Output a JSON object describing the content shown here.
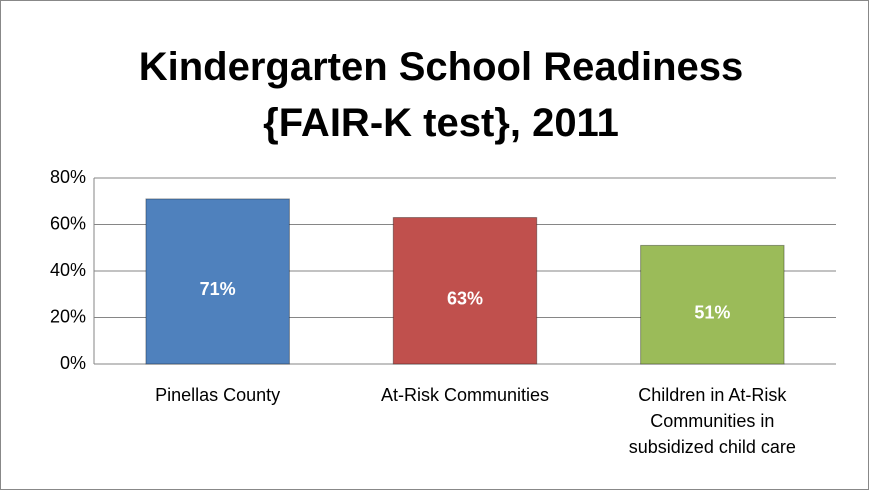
{
  "chart_data": {
    "type": "bar",
    "title": "Kindergarten School Readiness {FAIR-K test}, 2011",
    "categories": [
      "Pinellas County",
      "At-Risk Communities",
      "Children in At-Risk Communities in subsidized child care"
    ],
    "values": [
      71,
      63,
      51
    ],
    "value_labels": [
      "71%",
      "63%",
      "51%"
    ],
    "colors": [
      "#4f81bd",
      "#c0504d",
      "#9bbb59"
    ],
    "ylim": [
      0,
      80
    ],
    "yticks": [
      {
        "value": 0,
        "label": "0%"
      },
      {
        "value": 20,
        "label": "20%"
      },
      {
        "value": 40,
        "label": "40%"
      },
      {
        "value": 60,
        "label": "60%"
      },
      {
        "value": 80,
        "label": "80%"
      }
    ],
    "grid": true
  }
}
